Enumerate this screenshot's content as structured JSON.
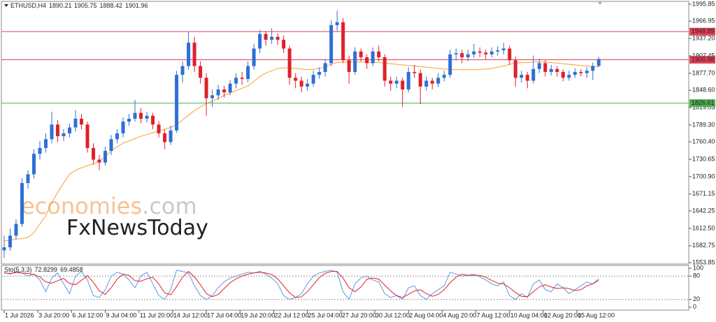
{
  "chart_data": {
    "type": "candlestick",
    "symbol": "ETHUSD,H4",
    "up_color": "#2f6fd6",
    "down_color": "#e0202a",
    "xlim": [
      -1.4,
      345.4
    ],
    "ylim": [
      1551.5,
      2000.6
    ],
    "yticks": [
      1553.85,
      1582.75,
      {
        "value": 1612.5,
        "label": "1612.50"
      },
      1642.25,
      1671.15,
      {
        "value": 1700.9,
        "label": "1700.90"
      },
      1730.65,
      {
        "value": 1760.4,
        "label": "1760.40"
      },
      {
        "value": 1789.3,
        "label": "1789.30"
      },
      1819.05,
      {
        "value": 1848.6,
        "label": "1848.60"
      },
      {
        "value": 1877.7,
        "label": "1877.70"
      },
      1907.45,
      {
        "value": 1937.2,
        "label": "1937.20"
      },
      1966.95,
      1995.85
    ],
    "xticks": [
      {
        "value": 0,
        "label": "1 Jul 2026"
      },
      {
        "value": 17,
        "label": "3 Jul 20:00"
      },
      {
        "value": 34,
        "label": "6 Jul 12:00"
      },
      {
        "value": 51,
        "label": "9 Jul 04:00"
      },
      {
        "value": 68,
        "label": "11 Jul 20:00"
      },
      {
        "value": 85,
        "label": "14 Jul 12:00"
      },
      {
        "value": 102,
        "label": "17 Jul 04:00"
      },
      {
        "value": 119,
        "label": "19 Jul 20:00"
      },
      {
        "value": 136,
        "label": "22 Jul 12:00"
      },
      {
        "value": 153,
        "label": "25 Jul 04:00"
      },
      {
        "value": 170,
        "label": "27 Jul 20:00"
      },
      {
        "value": 187,
        "label": "30 Jul 12:00"
      },
      {
        "value": 204,
        "label": "2 Aug 04:00"
      },
      {
        "value": 221,
        "label": "4 Aug 20:00"
      },
      {
        "value": 238,
        "label": "7 Aug 12:00"
      },
      {
        "value": 255,
        "label": "10 Aug 04:00"
      },
      {
        "value": 272,
        "label": "12 Aug 20:00"
      },
      {
        "value": 289,
        "label": "15 Aug 12:00"
      }
    ],
    "x": [
      0,
      3,
      6,
      9,
      12,
      15,
      18,
      21,
      24,
      27,
      30,
      33,
      36,
      39,
      42,
      45,
      48,
      51,
      54,
      57,
      60,
      63,
      66,
      69,
      72,
      75,
      78,
      81,
      84,
      87,
      90,
      93,
      96,
      99,
      102,
      105,
      108,
      111,
      114,
      117,
      120,
      123,
      126,
      129,
      132,
      135,
      138,
      141,
      144,
      147,
      150,
      153,
      156,
      159,
      162,
      165,
      168,
      171,
      174,
      177,
      180,
      183,
      186,
      189,
      192,
      195,
      198,
      201,
      204,
      207,
      210,
      213,
      216,
      219,
      222,
      225,
      228,
      231,
      234,
      237,
      240,
      243,
      246,
      249,
      252,
      255,
      258,
      261,
      264,
      267,
      270,
      273,
      276,
      279,
      282,
      285,
      288,
      291,
      294,
      297,
      300
    ],
    "ohlc": [
      [
        1575,
        1600,
        1562,
        1580
      ],
      [
        1580,
        1612,
        1574,
        1600
      ],
      [
        1600,
        1628,
        1594,
        1620
      ],
      [
        1620,
        1698,
        1615,
        1690
      ],
      [
        1690,
        1712,
        1680,
        1705
      ],
      [
        1705,
        1748,
        1698,
        1740
      ],
      [
        1740,
        1762,
        1730,
        1750
      ],
      [
        1750,
        1775,
        1742,
        1765
      ],
      [
        1765,
        1812,
        1758,
        1790
      ],
      [
        1790,
        1798,
        1760,
        1770
      ],
      [
        1770,
        1782,
        1762,
        1775
      ],
      [
        1775,
        1792,
        1768,
        1785
      ],
      [
        1785,
        1815,
        1778,
        1800
      ],
      [
        1800,
        1808,
        1782,
        1790
      ],
      [
        1790,
        1795,
        1742,
        1750
      ],
      [
        1750,
        1758,
        1722,
        1730
      ],
      [
        1730,
        1738,
        1712,
        1725
      ],
      [
        1725,
        1752,
        1720,
        1745
      ],
      [
        1745,
        1772,
        1738,
        1765
      ],
      [
        1765,
        1782,
        1758,
        1775
      ],
      [
        1775,
        1802,
        1768,
        1795
      ],
      [
        1795,
        1808,
        1788,
        1800
      ],
      [
        1800,
        1832,
        1795,
        1810
      ],
      [
        1810,
        1818,
        1792,
        1800
      ],
      [
        1800,
        1812,
        1794,
        1805
      ],
      [
        1805,
        1810,
        1782,
        1790
      ],
      [
        1790,
        1796,
        1768,
        1775
      ],
      [
        1775,
        1782,
        1748,
        1760
      ],
      [
        1760,
        1788,
        1755,
        1780
      ],
      [
        1780,
        1882,
        1776,
        1875
      ],
      [
        1875,
        1898,
        1862,
        1890
      ],
      [
        1890,
        1948,
        1884,
        1930
      ],
      [
        1930,
        1940,
        1880,
        1890
      ],
      [
        1890,
        1898,
        1860,
        1870
      ],
      [
        1870,
        1878,
        1805,
        1835
      ],
      [
        1835,
        1850,
        1820,
        1840
      ],
      [
        1840,
        1858,
        1832,
        1850
      ],
      [
        1850,
        1856,
        1836,
        1845
      ],
      [
        1845,
        1866,
        1840,
        1860
      ],
      [
        1860,
        1878,
        1852,
        1870
      ],
      [
        1870,
        1880,
        1858,
        1868
      ],
      [
        1868,
        1898,
        1862,
        1890
      ],
      [
        1890,
        1928,
        1884,
        1920
      ],
      [
        1920,
        1952,
        1912,
        1945
      ],
      [
        1945,
        1950,
        1925,
        1935
      ],
      [
        1935,
        1955,
        1928,
        1940
      ],
      [
        1940,
        1946,
        1926,
        1935
      ],
      [
        1935,
        1942,
        1912,
        1920
      ],
      [
        1920,
        1925,
        1858,
        1870
      ],
      [
        1870,
        1878,
        1852,
        1865
      ],
      [
        1865,
        1872,
        1845,
        1855
      ],
      [
        1855,
        1868,
        1848,
        1860
      ],
      [
        1860,
        1882,
        1855,
        1875
      ],
      [
        1875,
        1888,
        1868,
        1880
      ],
      [
        1880,
        1902,
        1872,
        1895
      ],
      [
        1895,
        1968,
        1890,
        1960
      ],
      [
        1960,
        1985,
        1950,
        1965
      ],
      [
        1965,
        1972,
        1895,
        1900
      ],
      [
        1900,
        1908,
        1860,
        1880
      ],
      [
        1880,
        1922,
        1875,
        1915
      ],
      [
        1915,
        1920,
        1898,
        1905
      ],
      [
        1905,
        1910,
        1885,
        1895
      ],
      [
        1895,
        1922,
        1890,
        1915
      ],
      [
        1915,
        1925,
        1898,
        1905
      ],
      [
        1905,
        1910,
        1855,
        1865
      ],
      [
        1865,
        1872,
        1848,
        1860
      ],
      [
        1860,
        1872,
        1852,
        1865
      ],
      [
        1865,
        1870,
        1820,
        1850
      ],
      [
        1850,
        1888,
        1845,
        1880
      ],
      [
        1880,
        1892,
        1870,
        1878
      ],
      [
        1878,
        1884,
        1825,
        1855
      ],
      [
        1855,
        1872,
        1848,
        1865
      ],
      [
        1865,
        1870,
        1850,
        1860
      ],
      [
        1860,
        1878,
        1854,
        1870
      ],
      [
        1870,
        1882,
        1864,
        1875
      ],
      [
        1875,
        1918,
        1870,
        1910
      ],
      [
        1910,
        1920,
        1900,
        1912
      ],
      [
        1912,
        1918,
        1895,
        1905
      ],
      [
        1905,
        1918,
        1898,
        1910
      ],
      [
        1910,
        1928,
        1904,
        1915
      ],
      [
        1915,
        1922,
        1905,
        1913
      ],
      [
        1913,
        1918,
        1902,
        1910
      ],
      [
        1910,
        1922,
        1905,
        1915
      ],
      [
        1915,
        1924,
        1908,
        1917
      ],
      [
        1917,
        1930,
        1910,
        1920
      ],
      [
        1920,
        1925,
        1892,
        1900
      ],
      [
        1900,
        1906,
        1855,
        1870
      ],
      [
        1870,
        1882,
        1862,
        1875
      ],
      [
        1875,
        1880,
        1852,
        1865
      ],
      [
        1865,
        1908,
        1860,
        1885
      ],
      [
        1885,
        1902,
        1878,
        1895
      ],
      [
        1895,
        1900,
        1872,
        1880
      ],
      [
        1880,
        1892,
        1874,
        1885
      ],
      [
        1885,
        1890,
        1872,
        1880
      ],
      [
        1880,
        1884,
        1864,
        1870
      ],
      [
        1870,
        1882,
        1865,
        1875
      ],
      [
        1875,
        1886,
        1870,
        1880
      ],
      [
        1880,
        1885,
        1872,
        1878
      ],
      [
        1878,
        1888,
        1870,
        1882
      ],
      [
        1882,
        1896,
        1866,
        1890.21
      ],
      [
        1890.21,
        1905.75,
        1888.42,
        1901.96
      ]
    ],
    "overlay": {
      "color": "#f5a030",
      "values": [
        1591,
        1592,
        1594,
        1595,
        1597,
        1605,
        1620,
        1634,
        1657,
        1674,
        1690,
        1705,
        1712,
        1716,
        1720,
        1722,
        1728,
        1735,
        1745,
        1752,
        1758,
        1762,
        1766,
        1770,
        1773,
        1776,
        1779,
        1782,
        1785,
        1790,
        1798,
        1806,
        1814,
        1820,
        1826,
        1830,
        1835,
        1840,
        1844,
        1848,
        1852,
        1856,
        1864,
        1872,
        1878,
        1882,
        1886,
        1887,
        1887,
        1886,
        1885,
        1884,
        1884,
        1886,
        1889,
        1893,
        1896,
        1897,
        1897,
        1897,
        1897,
        1897,
        1896,
        1896,
        1895,
        1894,
        1893,
        1892,
        1891,
        1890,
        1889,
        1888,
        1887,
        1886,
        1885,
        1884,
        1884,
        1884,
        1884,
        1884,
        1884,
        1885,
        1886,
        1888,
        1890,
        1893,
        1895,
        1896,
        1896,
        1897,
        1897,
        1897,
        1896,
        1895,
        1894,
        1893,
        1892,
        1891,
        1890,
        1889,
        1889
      ]
    },
    "levels": [
      {
        "value": 1948.89,
        "color": "#e0405a"
      },
      {
        "value": 1900.88,
        "color": "#e0405a"
      },
      {
        "value": 1826.61,
        "color": "#4caf50"
      }
    ],
    "watermark": {
      "brand": "economies",
      "domain": ".com",
      "second": "FxNewsToday"
    },
    "stochastic": {
      "title": "Sto(5,3,3)",
      "ylim": [
        -7.4,
        107.4
      ],
      "yticks": [
        0,
        20,
        80,
        100
      ],
      "levels": [
        20,
        80
      ],
      "series": [
        {
          "color": "#5b9be0",
          "values": [
            90,
            85,
            92,
            88,
            80,
            85,
            70,
            40,
            75,
            88,
            60,
            35,
            80,
            92,
            70,
            30,
            25,
            45,
            80,
            90,
            85,
            70,
            50,
            80,
            90,
            60,
            30,
            20,
            45,
            95,
            92,
            88,
            55,
            30,
            20,
            30,
            50,
            65,
            75,
            80,
            85,
            90,
            88,
            92,
            85,
            75,
            60,
            30,
            20,
            25,
            35,
            60,
            80,
            88,
            92,
            95,
            90,
            40,
            20,
            60,
            75,
            80,
            70,
            65,
            35,
            25,
            30,
            20,
            50,
            55,
            30,
            20,
            35,
            45,
            55,
            90,
            85,
            80,
            82,
            85,
            78,
            70,
            60,
            55,
            65,
            30,
            20,
            35,
            25,
            60,
            70,
            45,
            40,
            60,
            50,
            35,
            45,
            55,
            65,
            60,
            72.8299
          ]
        },
        {
          "color": "#e0202a",
          "values": [
            88,
            87,
            89,
            88,
            87,
            84,
            78,
            65,
            62,
            68,
            74,
            61,
            58,
            69,
            81,
            64,
            42,
            33,
            50,
            72,
            85,
            82,
            68,
            67,
            73,
            77,
            60,
            37,
            32,
            53,
            77,
            92,
            78,
            58,
            35,
            27,
            33,
            48,
            63,
            73,
            80,
            85,
            88,
            90,
            88,
            84,
            73,
            55,
            37,
            25,
            27,
            40,
            58,
            76,
            87,
            92,
            92,
            75,
            50,
            40,
            52,
            72,
            75,
            72,
            57,
            42,
            30,
            25,
            33,
            42,
            45,
            35,
            28,
            33,
            45,
            63,
            77,
            85,
            82,
            82,
            82,
            77,
            69,
            62,
            60,
            50,
            38,
            28,
            27,
            40,
            52,
            58,
            52,
            48,
            50,
            48,
            43,
            45,
            55,
            60,
            69.4858
          ]
        }
      ]
    }
  }
}
